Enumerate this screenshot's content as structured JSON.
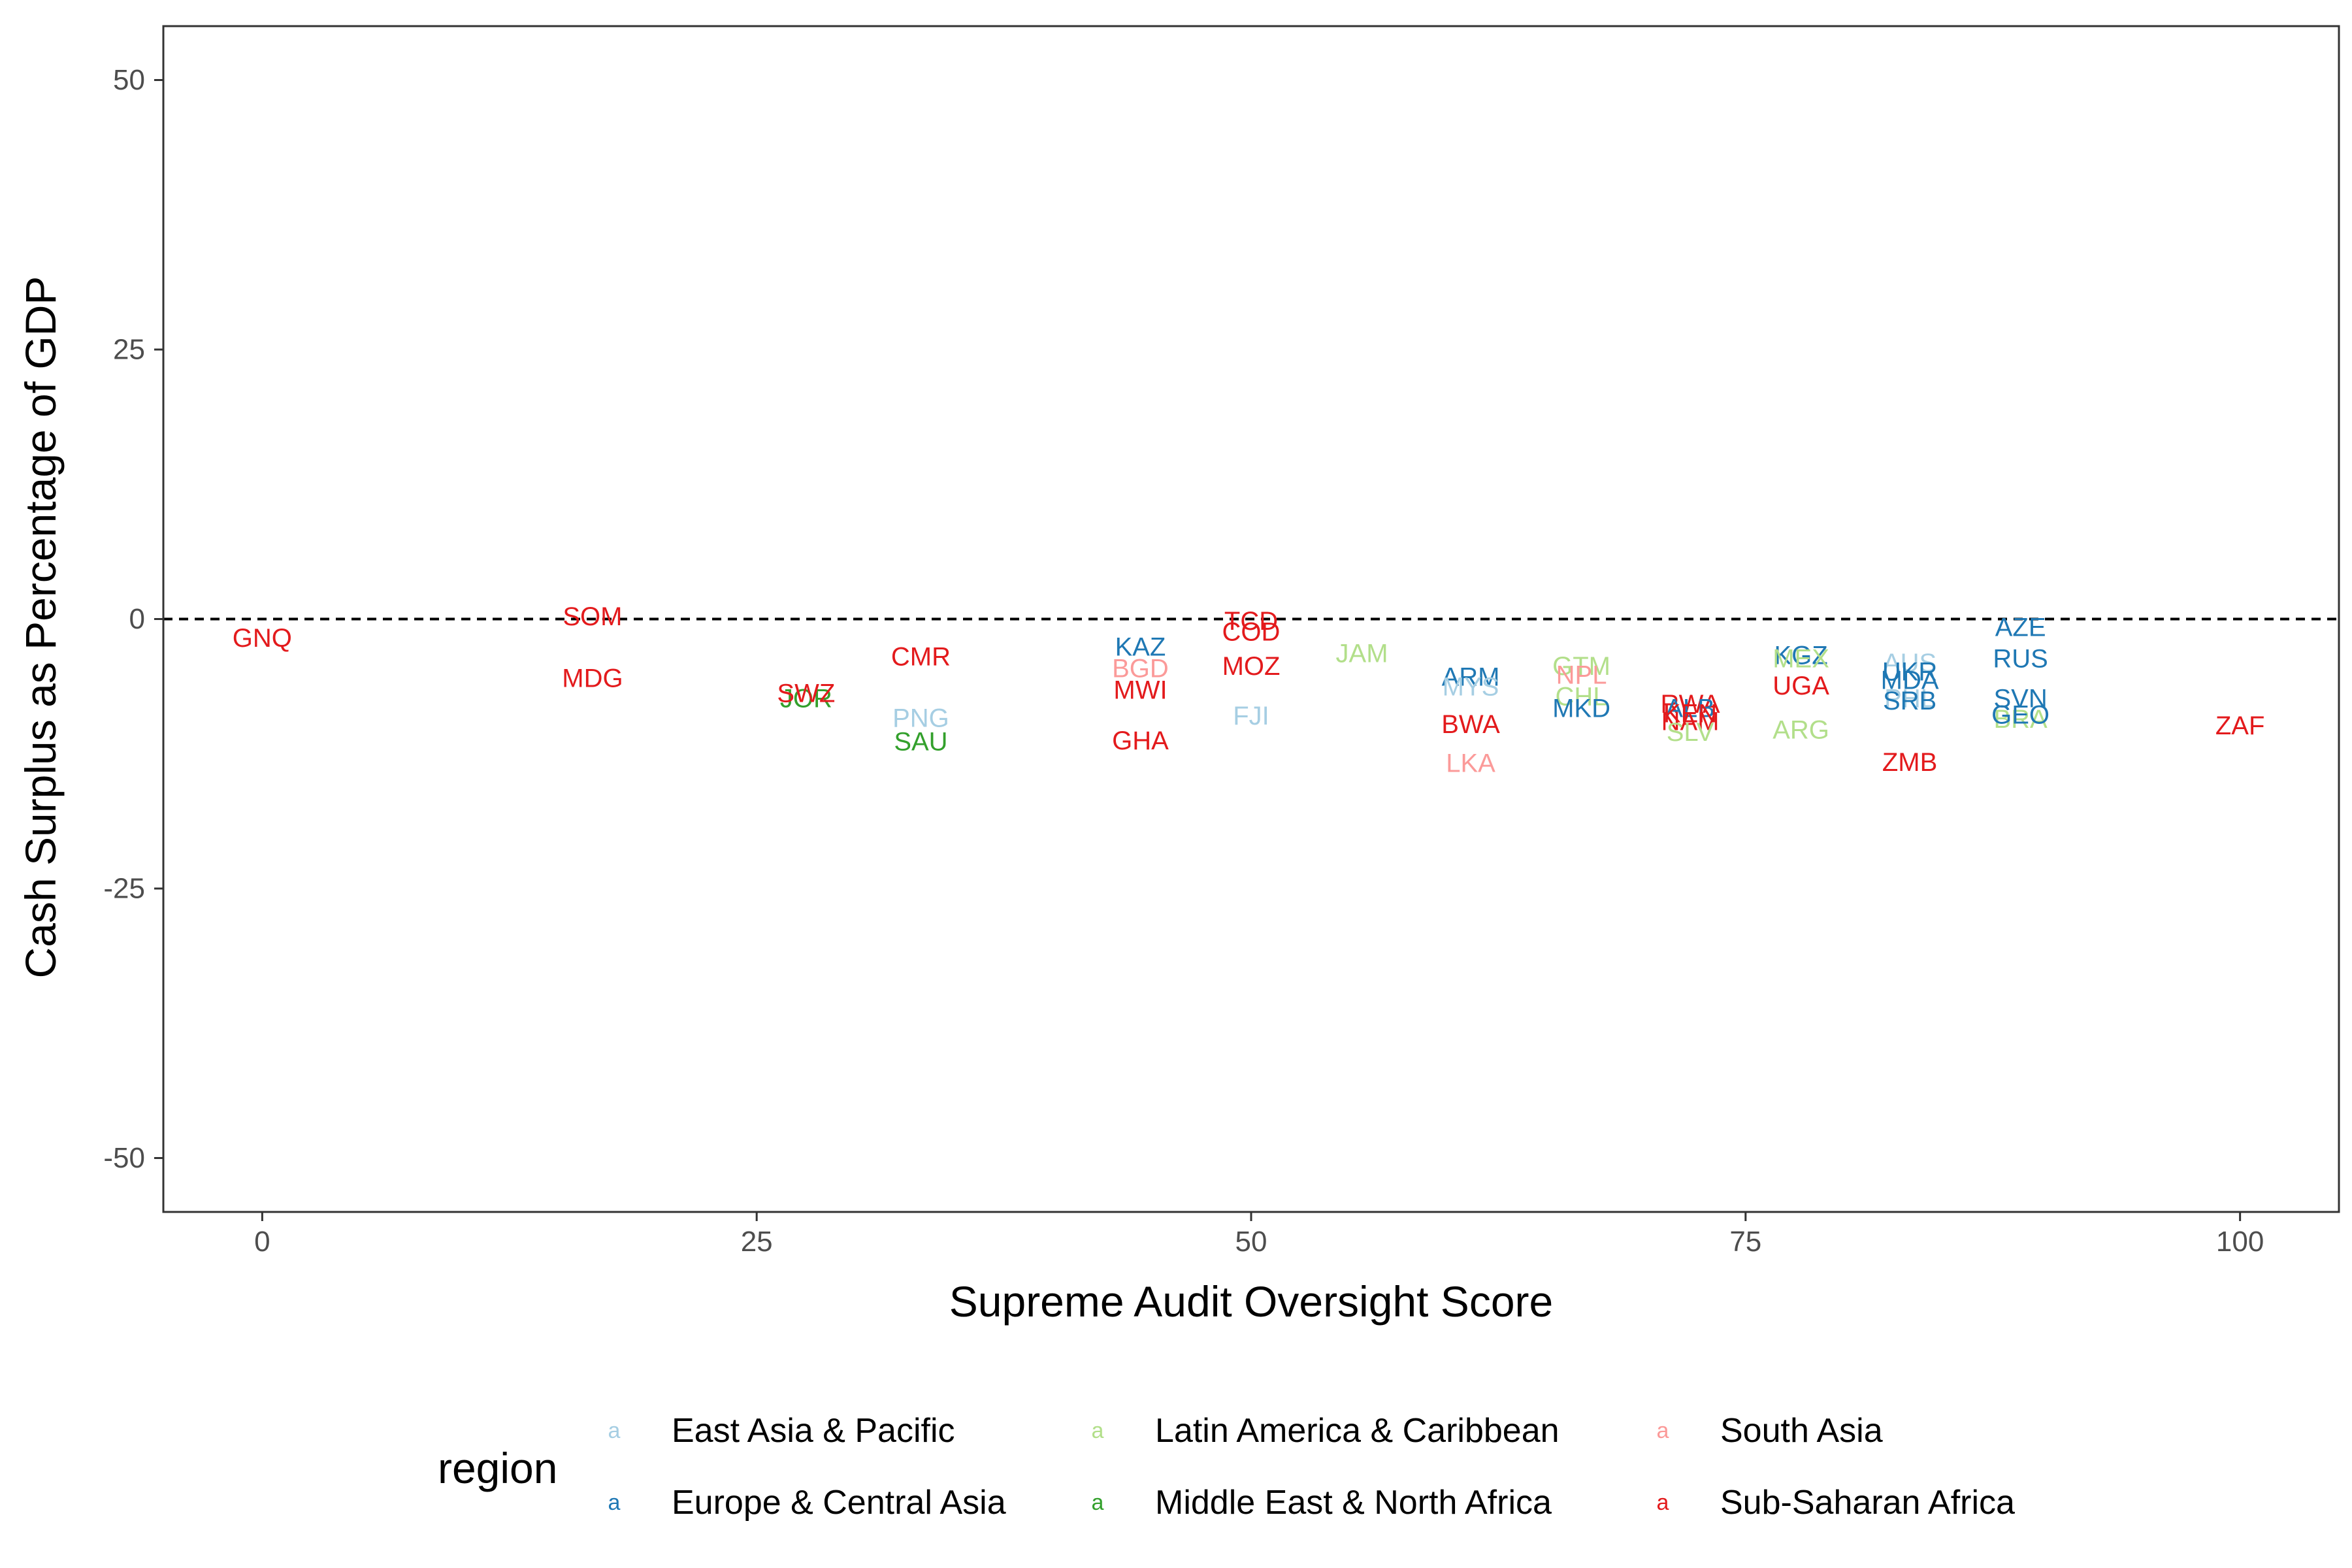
{
  "chart_data": {
    "type": "scatter",
    "xlabel": "Supreme Audit Oversight Score",
    "ylabel": "Cash Surplus as Percentage of GDP",
    "xlim": [
      -5,
      105
    ],
    "ylim": [
      -55,
      55
    ],
    "xticks": [
      0,
      25,
      50,
      75,
      100
    ],
    "yticks": [
      50,
      25,
      0,
      -25,
      -50
    ],
    "reference_line": {
      "y": 0,
      "style": "dashed"
    },
    "grid": false,
    "legend": {
      "title": "region",
      "position": "bottom",
      "key_glyph": "a",
      "entries": [
        {
          "name": "East Asia & Pacific",
          "color": "#A6CEE3"
        },
        {
          "name": "Europe & Central Asia",
          "color": "#1F78B4"
        },
        {
          "name": "Latin America & Caribbean",
          "color": "#B2DF8A"
        },
        {
          "name": "Middle East & North Africa",
          "color": "#33A02C"
        },
        {
          "name": "South Asia",
          "color": "#FB9A99"
        },
        {
          "name": "Sub-Saharan Africa",
          "color": "#E31A1C"
        }
      ]
    },
    "points": [
      {
        "label": "GNQ",
        "x": 0,
        "y": -1.8,
        "region": "Sub-Saharan Africa"
      },
      {
        "label": "SOM",
        "x": 16.7,
        "y": 0.2,
        "region": "Sub-Saharan Africa"
      },
      {
        "label": "MDG",
        "x": 16.7,
        "y": -5.5,
        "region": "Sub-Saharan Africa"
      },
      {
        "label": "JOR",
        "x": 27.5,
        "y": -7.4,
        "region": "Middle East & North Africa"
      },
      {
        "label": "SWZ",
        "x": 27.5,
        "y": -6.9,
        "region": "Sub-Saharan Africa"
      },
      {
        "label": "CMR",
        "x": 33.3,
        "y": -3.5,
        "region": "Sub-Saharan Africa"
      },
      {
        "label": "PNG",
        "x": 33.3,
        "y": -9.2,
        "region": "East Asia & Pacific"
      },
      {
        "label": "SAU",
        "x": 33.3,
        "y": -11.4,
        "region": "Middle East & North Africa"
      },
      {
        "label": "KAZ",
        "x": 44.4,
        "y": -2.6,
        "region": "Europe & Central Asia"
      },
      {
        "label": "BGD",
        "x": 44.4,
        "y": -4.6,
        "region": "South Asia"
      },
      {
        "label": "MWI",
        "x": 44.4,
        "y": -6.6,
        "region": "Sub-Saharan Africa"
      },
      {
        "label": "GHA",
        "x": 44.4,
        "y": -11.3,
        "region": "Sub-Saharan Africa"
      },
      {
        "label": "TCD",
        "x": 50.0,
        "y": -0.2,
        "region": "Sub-Saharan Africa"
      },
      {
        "label": "COD",
        "x": 50.0,
        "y": -1.2,
        "region": "Sub-Saharan Africa"
      },
      {
        "label": "MOZ",
        "x": 50.0,
        "y": -4.4,
        "region": "Sub-Saharan Africa"
      },
      {
        "label": "FJI",
        "x": 50.0,
        "y": -9.0,
        "region": "East Asia & Pacific"
      },
      {
        "label": "JAM",
        "x": 55.6,
        "y": -3.2,
        "region": "Latin America & Caribbean"
      },
      {
        "label": "ARM",
        "x": 61.1,
        "y": -5.4,
        "region": "Europe & Central Asia"
      },
      {
        "label": "MYS",
        "x": 61.1,
        "y": -6.3,
        "region": "East Asia & Pacific"
      },
      {
        "label": "BWA",
        "x": 61.1,
        "y": -9.8,
        "region": "Sub-Saharan Africa"
      },
      {
        "label": "LKA",
        "x": 61.1,
        "y": -13.4,
        "region": "South Asia"
      },
      {
        "label": "GTM",
        "x": 66.7,
        "y": -4.4,
        "region": "Latin America & Caribbean"
      },
      {
        "label": "NPL",
        "x": 66.7,
        "y": -5.2,
        "region": "South Asia"
      },
      {
        "label": "CHL",
        "x": 66.7,
        "y": -7.2,
        "region": "Latin America & Caribbean"
      },
      {
        "label": "MKD",
        "x": 66.7,
        "y": -8.3,
        "region": "Europe & Central Asia"
      },
      {
        "label": "RWA",
        "x": 72.2,
        "y": -7.9,
        "region": "Sub-Saharan Africa"
      },
      {
        "label": "ALB",
        "x": 72.2,
        "y": -8.3,
        "region": "Europe & Central Asia"
      },
      {
        "label": "KEN",
        "x": 72.2,
        "y": -8.8,
        "region": "Sub-Saharan Africa"
      },
      {
        "label": "NAM",
        "x": 72.2,
        "y": -9.5,
        "region": "Sub-Saharan Africa"
      },
      {
        "label": "SLV",
        "x": 72.2,
        "y": -10.5,
        "region": "Latin America & Caribbean"
      },
      {
        "label": "KGZ",
        "x": 77.8,
        "y": -3.4,
        "region": "Europe & Central Asia"
      },
      {
        "label": "MEX",
        "x": 77.8,
        "y": -3.7,
        "region": "Latin America & Caribbean"
      },
      {
        "label": "UGA",
        "x": 77.8,
        "y": -6.2,
        "region": "Sub-Saharan Africa"
      },
      {
        "label": "ARG",
        "x": 77.8,
        "y": -10.3,
        "region": "Latin America & Caribbean"
      },
      {
        "label": "AUS",
        "x": 83.3,
        "y": -4.1,
        "region": "East Asia & Pacific"
      },
      {
        "label": "UKR",
        "x": 83.3,
        "y": -4.9,
        "region": "Europe & Central Asia"
      },
      {
        "label": "MDA",
        "x": 83.3,
        "y": -5.7,
        "region": "Europe & Central Asia"
      },
      {
        "label": "PHL",
        "x": 83.3,
        "y": -7.4,
        "region": "East Asia & Pacific"
      },
      {
        "label": "SRB",
        "x": 83.3,
        "y": -7.6,
        "region": "Europe & Central Asia"
      },
      {
        "label": "ZMB",
        "x": 83.3,
        "y": -13.3,
        "region": "Sub-Saharan Africa"
      },
      {
        "label": "AZE",
        "x": 88.9,
        "y": -0.8,
        "region": "Europe & Central Asia"
      },
      {
        "label": "RUS",
        "x": 88.9,
        "y": -3.7,
        "region": "Europe & Central Asia"
      },
      {
        "label": "SVN",
        "x": 88.9,
        "y": -7.4,
        "region": "Europe & Central Asia"
      },
      {
        "label": "BRA",
        "x": 88.9,
        "y": -9.3,
        "region": "Latin America & Caribbean"
      },
      {
        "label": "GEO",
        "x": 88.9,
        "y": -8.9,
        "region": "Europe & Central Asia"
      },
      {
        "label": "ZAF",
        "x": 100,
        "y": -9.9,
        "region": "Sub-Saharan Africa"
      }
    ]
  }
}
